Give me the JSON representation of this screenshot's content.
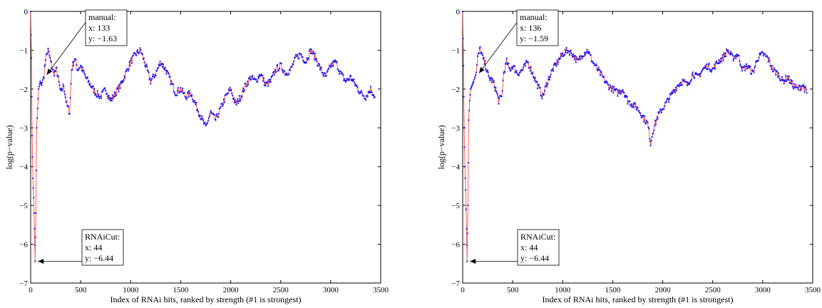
{
  "chart_data": [
    {
      "type": "line",
      "xlabel": "Index of RNAi hits, ranked by strength (#1 is strongest)",
      "ylabel": "log(p−value)",
      "xlim": [
        0,
        3500
      ],
      "ylim": [
        -7,
        0
      ],
      "x_ticks": [
        "0",
        "500",
        "1000",
        "1500",
        "2000",
        "2500",
        "3000",
        "3500"
      ],
      "y_ticks": [
        "0",
        "−1",
        "−2",
        "−3",
        "−4",
        "−5",
        "−6",
        "−7"
      ],
      "colors": {
        "markers": "#1a1aff",
        "line": "#ff3b3b"
      },
      "series": [
        {
          "x": [
            1,
            8,
            15,
            22,
            30,
            38,
            44,
            52,
            60,
            70,
            80,
            95,
            110,
            133,
            150,
            175,
            200,
            230,
            260,
            300,
            330,
            360,
            390,
            410,
            440,
            470,
            500,
            550,
            600,
            650,
            700,
            750,
            800,
            850,
            900,
            950,
            1000,
            1050,
            1100,
            1150,
            1200,
            1250,
            1300,
            1350,
            1400,
            1450,
            1500,
            1550,
            1600,
            1650,
            1700,
            1750,
            1800,
            1850,
            1900,
            1950,
            2000,
            2050,
            2100,
            2150,
            2200,
            2250,
            2300,
            2350,
            2400,
            2450,
            2500,
            2550,
            2600,
            2650,
            2700,
            2750,
            2800,
            2850,
            2900,
            2950,
            3000,
            3050,
            3100,
            3150,
            3200,
            3250,
            3300,
            3350,
            3400,
            3440
          ],
          "y": [
            0,
            -1.2,
            -3.2,
            -4.3,
            -4.8,
            -5.6,
            -6.44,
            -5.2,
            -3.0,
            -2.5,
            -2.0,
            -1.8,
            -1.9,
            -1.63,
            -1.2,
            -1.0,
            -1.3,
            -1.6,
            -1.5,
            -2.1,
            -1.9,
            -2.4,
            -2.6,
            -1.5,
            -1.2,
            -1.5,
            -1.4,
            -1.7,
            -1.9,
            -2.1,
            -2.2,
            -2.0,
            -2.3,
            -2.1,
            -1.9,
            -1.6,
            -1.3,
            -1.1,
            -1.0,
            -1.4,
            -1.8,
            -1.6,
            -1.3,
            -1.5,
            -1.8,
            -2.1,
            -2.0,
            -2.2,
            -2.1,
            -2.4,
            -2.7,
            -3.0,
            -2.6,
            -2.8,
            -2.5,
            -2.2,
            -2.0,
            -2.4,
            -2.2,
            -1.9,
            -1.7,
            -1.8,
            -1.6,
            -1.9,
            -1.8,
            -1.5,
            -1.4,
            -1.6,
            -1.5,
            -1.2,
            -1.1,
            -1.3,
            -1.0,
            -1.2,
            -1.5,
            -1.7,
            -1.4,
            -1.3,
            -1.6,
            -1.8,
            -1.7,
            -1.9,
            -2.1,
            -2.2,
            -2.0,
            -2.2
          ]
        }
      ],
      "annotations": [
        {
          "title": "manual:",
          "x_label": "x: 133",
          "y_label": "y: −1.63",
          "x": 133,
          "y": -1.63
        },
        {
          "title": "RNAiCut:",
          "x_label": "x: 44",
          "y_label": "y: −6.44",
          "x": 44,
          "y": -6.44
        }
      ]
    },
    {
      "type": "line",
      "xlabel": "Index of RNAi hits, ranked by strength (#1 is strongest)",
      "ylabel": "log(p−value)",
      "xlim": [
        0,
        3500
      ],
      "ylim": [
        -7,
        0
      ],
      "x_ticks": [
        "0",
        "500",
        "1000",
        "1500",
        "2000",
        "2500",
        "3000",
        "3500"
      ],
      "y_ticks": [
        "0",
        "−1",
        "−2",
        "−3",
        "−4",
        "−5",
        "−6",
        "−7"
      ],
      "colors": {
        "markers": "#1a1aff",
        "line": "#ff3b3b"
      },
      "series": [
        {
          "x": [
            1,
            8,
            15,
            22,
            30,
            38,
            44,
            52,
            60,
            70,
            80,
            95,
            110,
            136,
            150,
            175,
            200,
            230,
            260,
            300,
            330,
            360,
            390,
            410,
            440,
            470,
            500,
            550,
            600,
            650,
            700,
            750,
            800,
            850,
            900,
            950,
            1000,
            1050,
            1100,
            1150,
            1200,
            1250,
            1300,
            1350,
            1400,
            1450,
            1500,
            1550,
            1600,
            1650,
            1700,
            1750,
            1800,
            1850,
            1880,
            1900,
            1950,
            2000,
            2050,
            2100,
            2150,
            2200,
            2250,
            2300,
            2350,
            2400,
            2450,
            2500,
            2550,
            2600,
            2650,
            2700,
            2750,
            2800,
            2850,
            2900,
            2950,
            3000,
            3050,
            3100,
            3150,
            3200,
            3250,
            3300,
            3350,
            3400,
            3440
          ],
          "y": [
            0,
            -1.4,
            -3.0,
            -4.0,
            -4.6,
            -5.6,
            -6.44,
            -5.0,
            -2.8,
            -2.3,
            -2.0,
            -1.9,
            -1.8,
            -1.59,
            -1.2,
            -0.95,
            -1.2,
            -1.4,
            -1.7,
            -1.8,
            -2.0,
            -2.3,
            -2.2,
            -1.6,
            -1.3,
            -1.5,
            -1.4,
            -1.6,
            -1.5,
            -1.3,
            -1.6,
            -1.9,
            -2.2,
            -1.8,
            -1.5,
            -1.3,
            -1.1,
            -1.0,
            -1.1,
            -1.3,
            -1.1,
            -1.0,
            -1.3,
            -1.5,
            -1.7,
            -1.9,
            -2.0,
            -2.1,
            -2.0,
            -2.3,
            -2.4,
            -2.5,
            -2.7,
            -2.9,
            -3.4,
            -3.1,
            -2.7,
            -2.5,
            -2.3,
            -2.1,
            -1.9,
            -1.8,
            -1.9,
            -1.6,
            -1.7,
            -1.5,
            -1.4,
            -1.5,
            -1.3,
            -1.2,
            -1.0,
            -1.2,
            -1.1,
            -1.5,
            -1.4,
            -1.6,
            -1.2,
            -1.1,
            -1.2,
            -1.5,
            -1.6,
            -1.8,
            -1.7,
            -1.9,
            -2.0,
            -1.9,
            -2.1
          ]
        }
      ],
      "annotations": [
        {
          "title": "manual:",
          "x_label": "x: 136",
          "y_label": "y: −1.59",
          "x": 136,
          "y": -1.59
        },
        {
          "title": "RNAiCut:",
          "x_label": "x: 44",
          "y_label": "y: −6.44",
          "x": 44,
          "y": -6.44
        }
      ]
    }
  ]
}
